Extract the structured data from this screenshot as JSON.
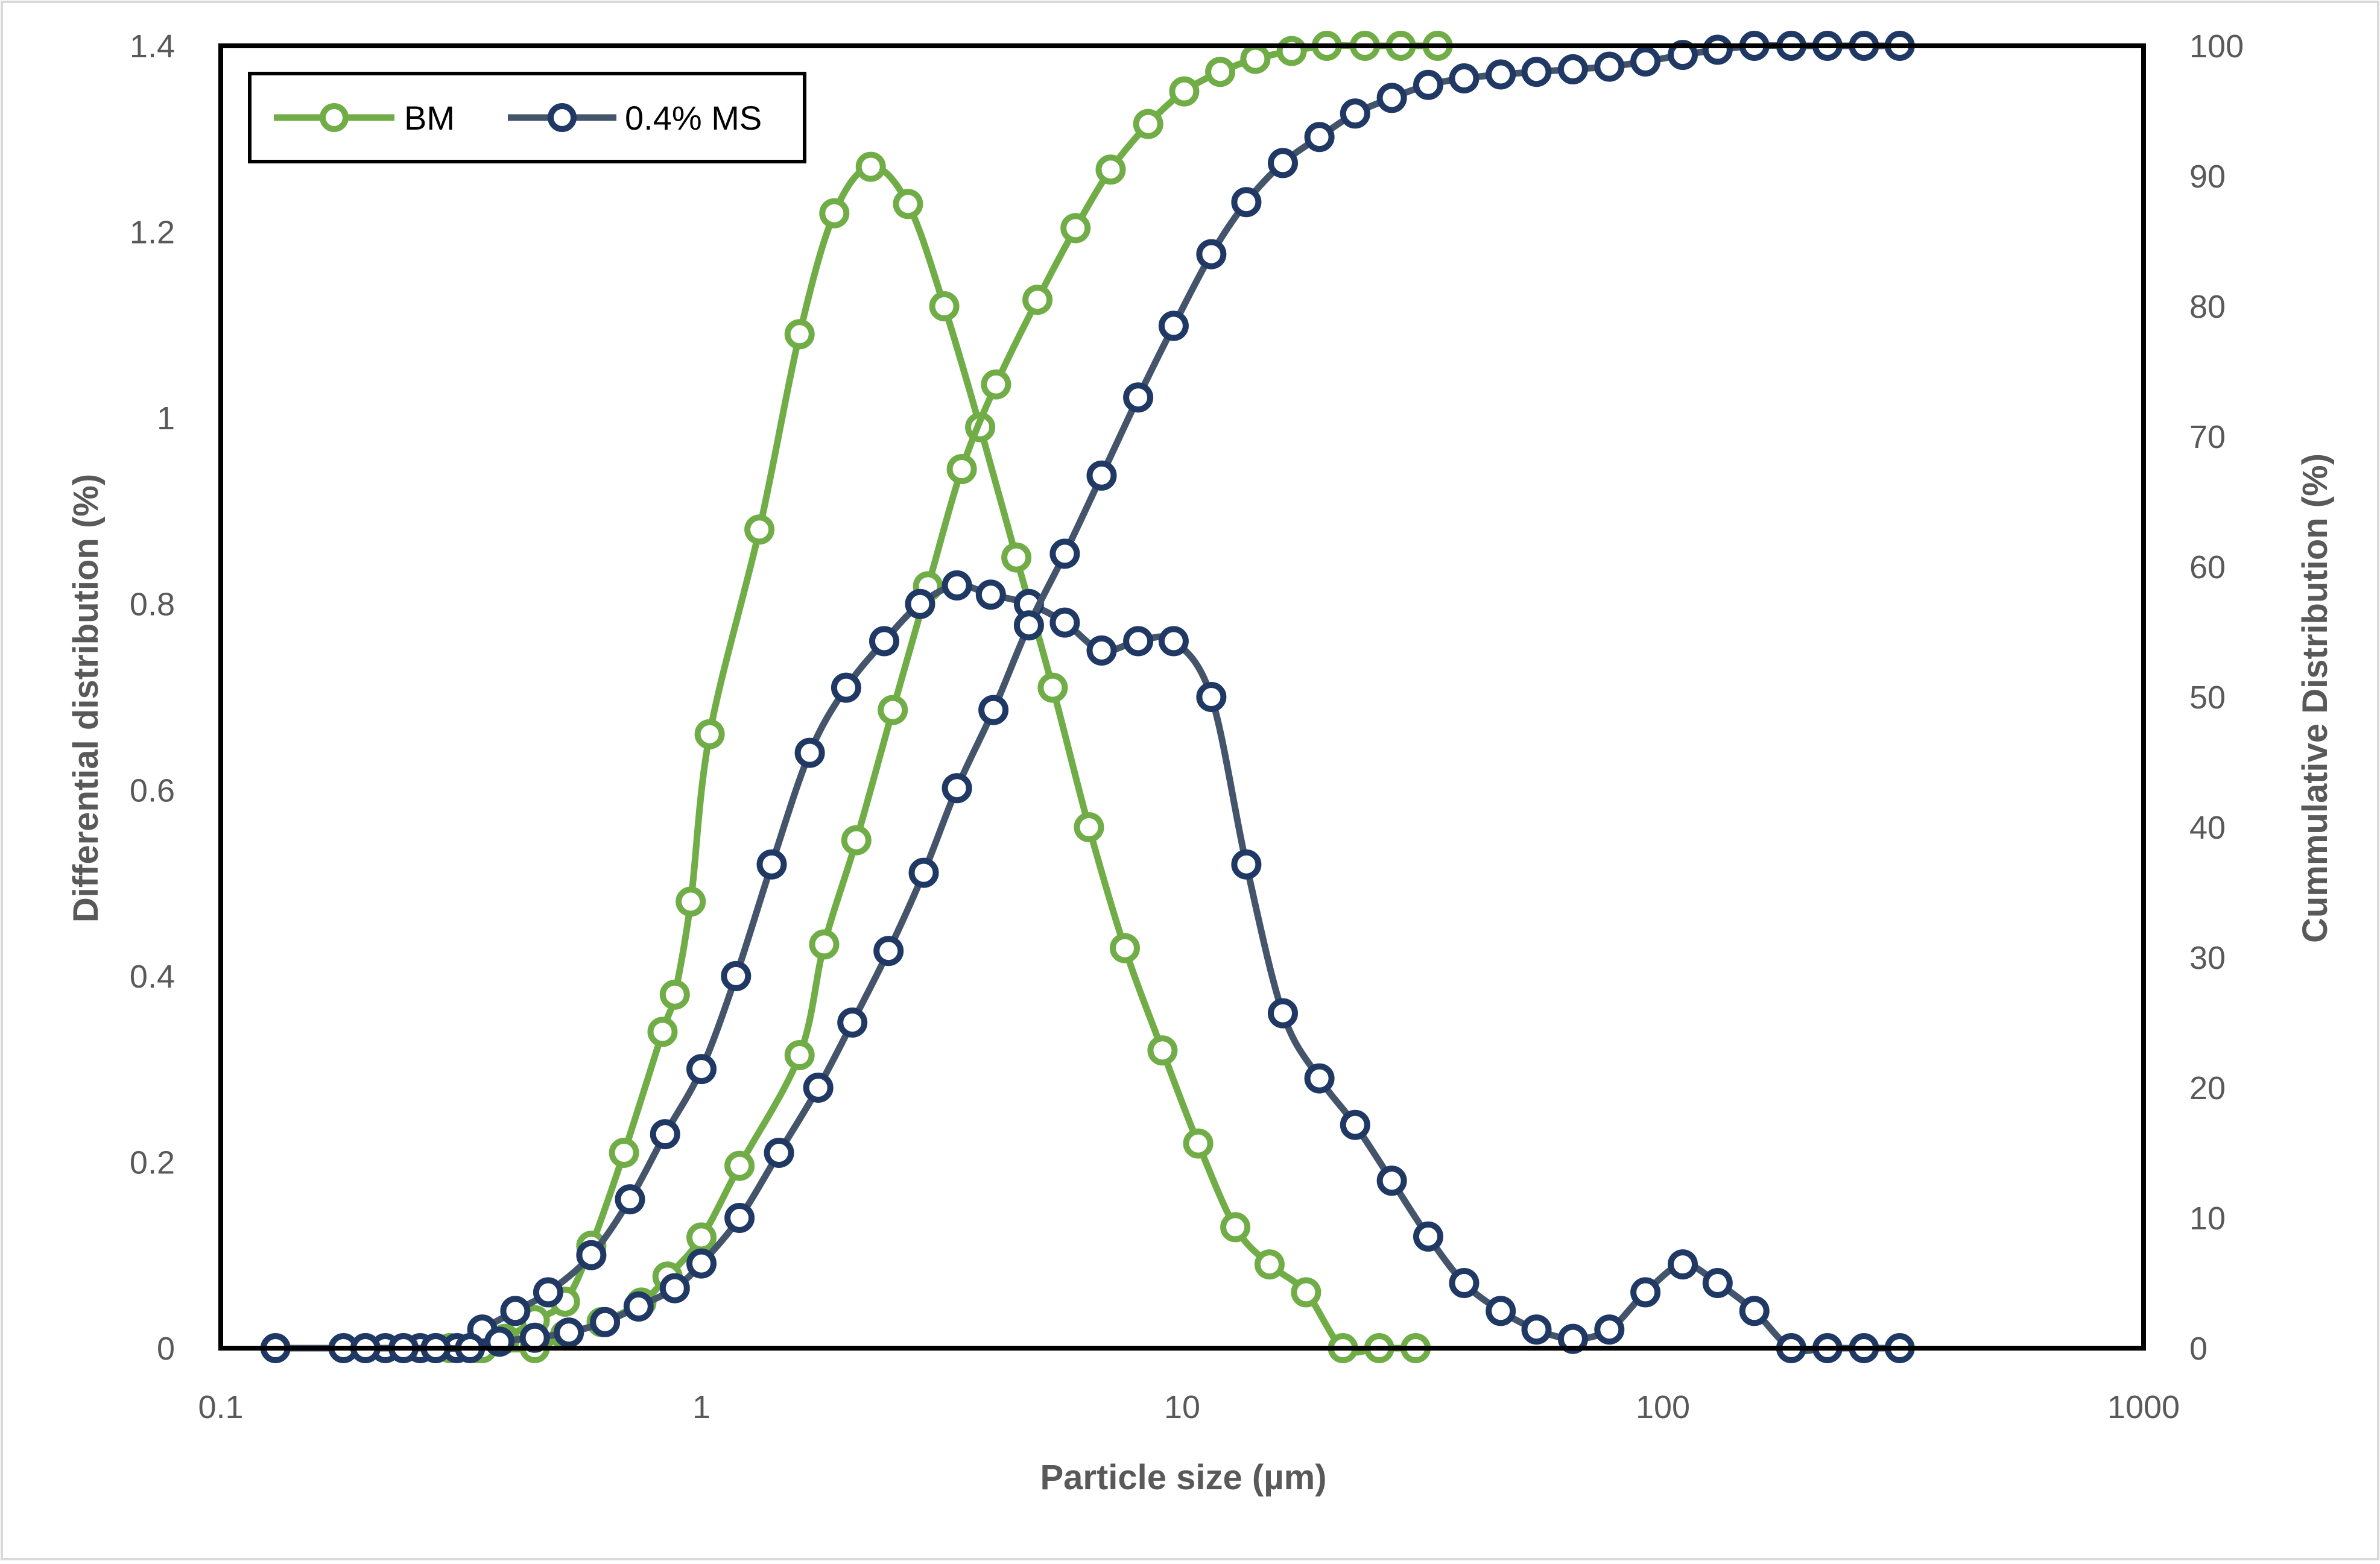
{
  "chart_data": {
    "type": "scatter",
    "xlabel": "Particle size (µm)",
    "ylabel": "Differential distribution (%)",
    "y2label": "Cummulative Distribution (%)",
    "x_scale": "log",
    "xlim": [
      0.1,
      1000
    ],
    "ylim": [
      0,
      1.4
    ],
    "y2lim": [
      0,
      100
    ],
    "x_ticks": [
      "0.1",
      "1",
      "10",
      "100",
      "1000"
    ],
    "y_ticks": [
      "0",
      "0.2",
      "0.4",
      "0.6",
      "0.8",
      "1",
      "1.2",
      "1.4"
    ],
    "y2_ticks": [
      "0",
      "10",
      "20",
      "30",
      "40",
      "50",
      "60",
      "70",
      "80",
      "90",
      "100"
    ],
    "legend_position": "top-left",
    "colors": {
      "BM": "#70ad47",
      "0.4% MS": "#1f3864",
      "ms_line": "#44546a",
      "axis": "#000000",
      "tick_text": "#595959"
    },
    "series": [
      {
        "name": "BM",
        "axis": "left",
        "x": [
          0.3,
          0.34,
          0.39,
          0.45,
          0.52,
          0.59,
          0.69,
          0.83,
          0.88,
          0.95,
          1.04,
          1.32,
          1.6,
          1.89,
          2.25,
          2.69,
          3.2,
          3.8,
          4.52,
          5.38,
          6.4,
          7.6,
          9.1,
          10.8,
          12.9,
          15.2,
          18.1,
          21.6,
          25.7,
          30.6
        ],
        "y": [
          0.0,
          0.0,
          0.01,
          0.03,
          0.05,
          0.11,
          0.21,
          0.34,
          0.38,
          0.48,
          0.66,
          0.88,
          1.09,
          1.22,
          1.27,
          1.23,
          1.12,
          0.99,
          0.85,
          0.71,
          0.56,
          0.43,
          0.32,
          0.22,
          0.13,
          0.09,
          0.06,
          0.0,
          0.0,
          0.0
        ]
      },
      {
        "name": "BM",
        "axis": "right",
        "x": [
          0.3,
          0.35,
          0.45,
          0.52,
          0.62,
          0.75,
          0.85,
          1.0,
          1.2,
          1.6,
          1.8,
          2.1,
          2.5,
          2.96,
          3.48,
          4.1,
          5.0,
          6.0,
          7.1,
          8.5,
          10.1,
          12.0,
          14.2,
          16.9,
          20.0,
          24.0,
          28.5,
          34.0
        ],
        "y": [
          0.0,
          0.0,
          0.0,
          1.0,
          2.0,
          3.5,
          5.5,
          8.5,
          14.0,
          22.5,
          31.0,
          39.0,
          49.0,
          58.5,
          67.5,
          74.0,
          80.5,
          86.0,
          90.5,
          94.0,
          96.5,
          98.0,
          99.0,
          99.6,
          100.0,
          100.0,
          100.0,
          100.0
        ]
      },
      {
        "name": "0.4% MS",
        "axis": "left",
        "x": [
          0.13,
          0.18,
          0.2,
          0.22,
          0.24,
          0.26,
          0.28,
          0.31,
          0.35,
          0.41,
          0.48,
          0.59,
          0.71,
          0.84,
          1.0,
          1.18,
          1.4,
          1.68,
          2.0,
          2.4,
          2.85,
          3.4,
          4.0,
          4.8,
          5.7,
          6.8,
          8.1,
          9.6,
          11.5,
          13.6,
          16.2,
          19.3,
          22.9,
          27.3,
          32.5,
          38.6,
          46.0,
          54.6,
          65.0,
          77.4,
          92.0,
          110.0,
          130.0,
          155.0,
          185.0,
          220.0,
          262.0,
          311.0
        ],
        "y": [
          0.0,
          0.0,
          0.0,
          0.0,
          0.0,
          0.0,
          0.0,
          0.0,
          0.02,
          0.04,
          0.06,
          0.1,
          0.16,
          0.23,
          0.3,
          0.4,
          0.52,
          0.64,
          0.71,
          0.76,
          0.8,
          0.82,
          0.81,
          0.8,
          0.78,
          0.75,
          0.76,
          0.76,
          0.7,
          0.52,
          0.36,
          0.29,
          0.24,
          0.18,
          0.12,
          0.07,
          0.04,
          0.02,
          0.01,
          0.02,
          0.06,
          0.09,
          0.07,
          0.04,
          0.0,
          0.0,
          0.0,
          0.0
        ]
      },
      {
        "name": "0.4% MS",
        "axis": "right",
        "x": [
          0.2,
          0.24,
          0.28,
          0.33,
          0.38,
          0.45,
          0.53,
          0.63,
          0.74,
          0.88,
          1.0,
          1.2,
          1.45,
          1.75,
          2.06,
          2.45,
          2.9,
          3.4,
          4.05,
          4.8,
          5.7,
          6.8,
          8.1,
          9.6,
          11.5,
          13.6,
          16.2,
          19.3,
          22.9,
          27.3,
          32.5,
          38.6,
          46.0,
          54.6,
          65.0,
          77.4,
          92.0,
          110.0,
          130.0,
          155.0,
          185.0,
          220.0,
          262.0,
          311.0
        ],
        "y": [
          0.0,
          0.0,
          0.0,
          0.0,
          0.5,
          0.8,
          1.2,
          2.0,
          3.2,
          4.6,
          6.5,
          10.0,
          15.0,
          20.0,
          25.0,
          30.5,
          36.5,
          43.0,
          49.0,
          55.5,
          61.0,
          67.0,
          73.0,
          78.5,
          84.0,
          88.0,
          91.0,
          93.0,
          94.8,
          96.0,
          97.0,
          97.5,
          97.8,
          98.0,
          98.2,
          98.4,
          98.8,
          99.3,
          99.7,
          100.0,
          100.0,
          100.0,
          100.0,
          100.0
        ]
      }
    ]
  }
}
